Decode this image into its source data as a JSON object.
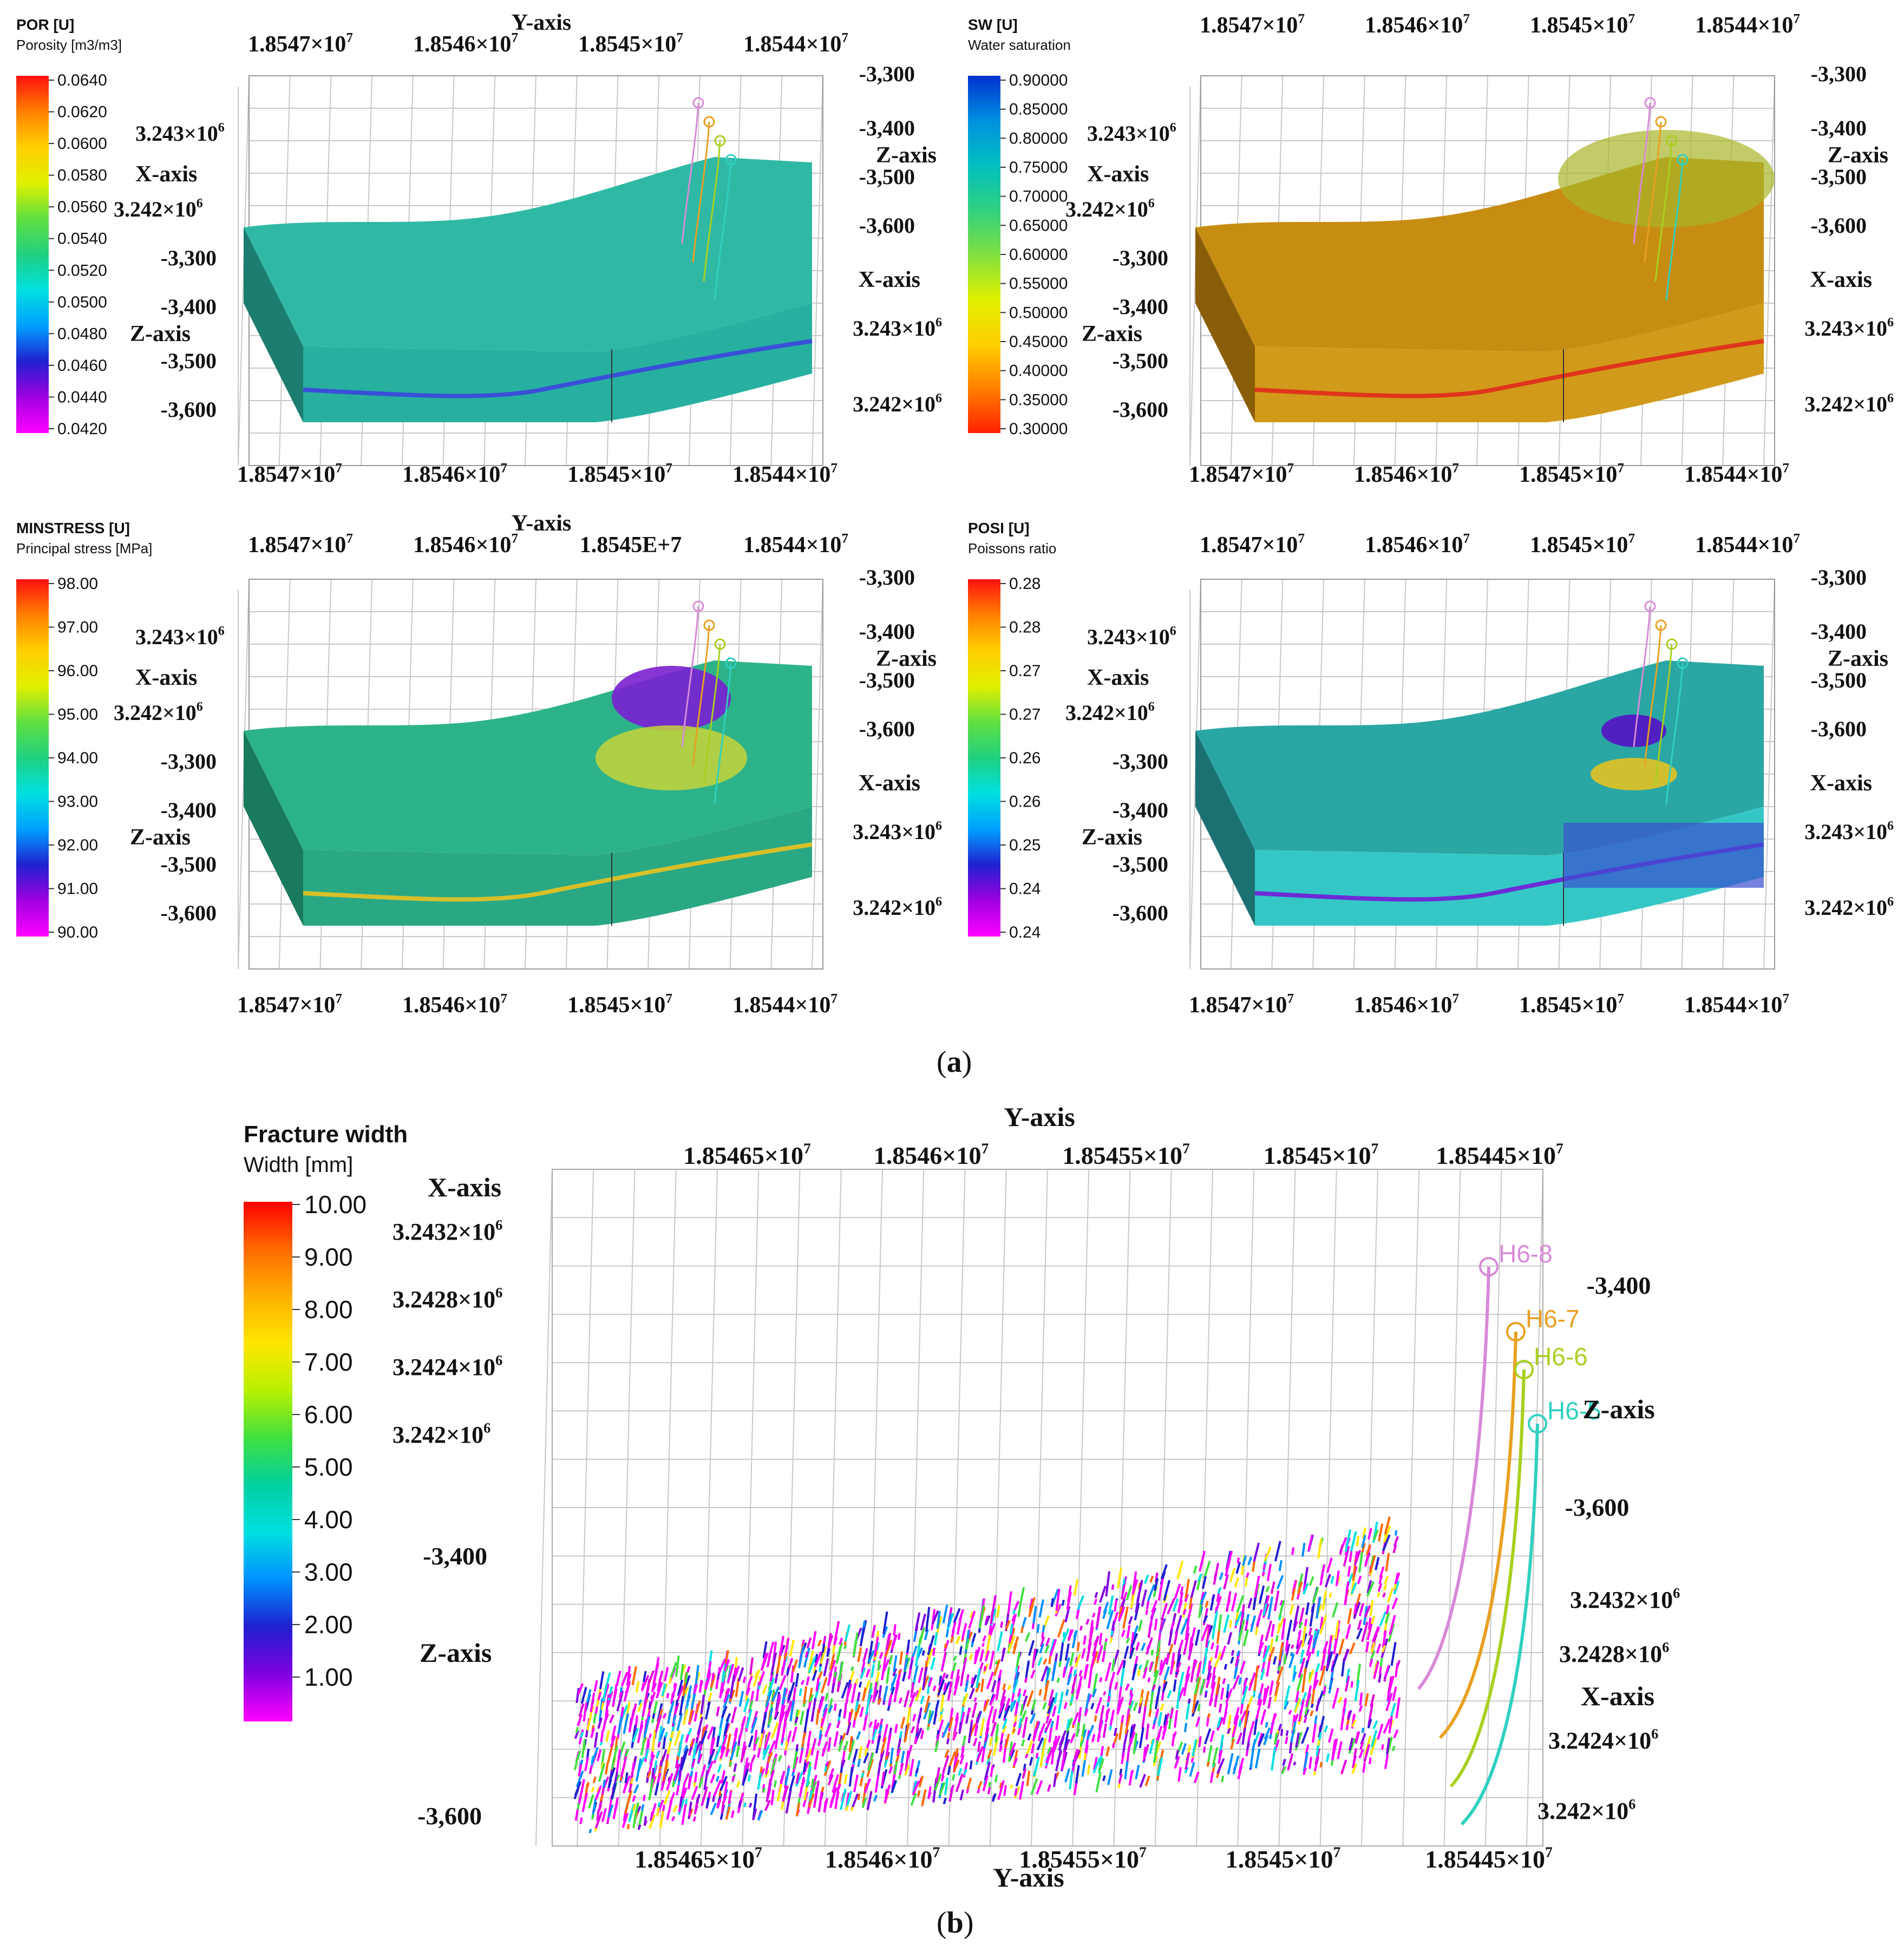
{
  "figure": {
    "caption_a_open": "(",
    "caption_a_letter": "a",
    "caption_a_close": ")",
    "caption_b_open": "(",
    "caption_b_letter": "b",
    "caption_b_close": ")"
  },
  "panels": [
    {
      "id": "por",
      "legend_title": "POR [U]",
      "legend_subtitle": "Porosity [m3/m3]",
      "legend_ticks": [
        "0.0640",
        "0.0620",
        "0.0600",
        "0.0580",
        "0.0560",
        "0.0540",
        "0.0520",
        "0.0500",
        "0.0480",
        "0.0460",
        "0.0440",
        "0.0420"
      ],
      "y_axis_title": "Y-axis",
      "y_ticks_top": [
        "1.8547×10",
        "1.8546×10",
        "1.8545×10",
        "1.8544×10"
      ],
      "y_ticks_bottom": [
        "1.8547×10",
        "1.8546×10",
        "1.8545×10",
        "1.8544×10"
      ],
      "y_exp": "7",
      "z_ticks_right": [
        "-3,300",
        "-3,400",
        "-3,500",
        "-3,600"
      ],
      "z_title_right": "Z-axis",
      "x_title_left": "X-axis",
      "x_ticks_left": [
        "3.243×10",
        "3.242×10"
      ],
      "x_exp": "6",
      "z_ticks_left": [
        "-3,300",
        "-3,400",
        "-3,500",
        "-3,600"
      ],
      "z_title_left": "Z-axis",
      "x_title_right": "X-axis",
      "x_ticks_right": [
        "3.243×10",
        "3.242×10"
      ],
      "wells": [],
      "colors": {
        "top": "#2fb9a4",
        "side": "#1b7c70",
        "front": "#27b0a0",
        "band": "#3a4fd8"
      }
    },
    {
      "id": "sw",
      "legend_title": "SW [U]",
      "legend_subtitle": "Water saturation",
      "legend_ticks": [
        "0.90000",
        "0.85000",
        "0.80000",
        "0.75000",
        "0.70000",
        "0.65000",
        "0.60000",
        "0.55000",
        "0.50000",
        "0.45000",
        "0.40000",
        "0.35000",
        "0.30000"
      ],
      "y_axis_title": "",
      "y_ticks_top": [
        "1.8547×10",
        "1.8546×10",
        "1.8545×10",
        "1.8544×10"
      ],
      "y_ticks_bottom": [
        "1.8547×10",
        "1.8546×10",
        "1.8545×10",
        "1.8544×10"
      ],
      "y_exp": "7",
      "z_ticks_right": [
        "-3,300",
        "-3,400",
        "-3,500",
        "-3,600"
      ],
      "z_title_right": "Z-axis",
      "x_title_left": "X-axis",
      "x_ticks_left": [
        "3.243×10",
        "3.242×10"
      ],
      "x_exp": "6",
      "z_ticks_left": [
        "-3,300",
        "-3,400",
        "-3,500",
        "-3,600"
      ],
      "z_title_left": "Z-axis",
      "x_title_right": "X-axis",
      "x_ticks_right": [
        "3.243×10",
        "3.242×10"
      ],
      "wells": [],
      "colors": {
        "top": "#c78d12",
        "side": "#8a5e08",
        "front": "#d19a1a",
        "band": "#e0341b"
      }
    },
    {
      "id": "minstress",
      "legend_title": "MINSTRESS [U]",
      "legend_subtitle": "Principal stress [MPa]",
      "legend_ticks": [
        "98.00",
        "97.00",
        "96.00",
        "95.00",
        "94.00",
        "93.00",
        "92.00",
        "91.00",
        "90.00"
      ],
      "y_axis_title": "Y-axis",
      "y_ticks_top": [
        "1.8547×10",
        "1.8546×10",
        "1.8545E+7",
        "1.8544×10"
      ],
      "y_ticks_bottom": [
        "1.8547×10",
        "1.8546×10",
        "1.8545×10",
        "1.8544×10"
      ],
      "y_exp": "7",
      "z_ticks_right": [
        "-3,300",
        "-3,400",
        "-3,500",
        "-3,600"
      ],
      "z_title_right": "Z-axis",
      "x_title_left": "X-axis",
      "x_ticks_left": [
        "3.243×10",
        "3.242×10"
      ],
      "x_exp": "6",
      "z_ticks_left": [
        "-3,300",
        "-3,400",
        "-3,500",
        "-3,600"
      ],
      "z_title_left": "Z-axis",
      "x_title_right": "X-axis",
      "x_ticks_right": [
        "3.243×10",
        "3.242×10"
      ],
      "wells": [],
      "colors": {
        "top": "#2db38a",
        "side": "#1a7a5d",
        "front": "#2aa884",
        "band": "#d6c02a"
      }
    },
    {
      "id": "posi",
      "legend_title": "POSI [U]",
      "legend_subtitle": "Poissons ratio",
      "legend_ticks": [
        "0.28",
        "0.28",
        "0.27",
        "0.27",
        "0.26",
        "0.26",
        "0.25",
        "0.24",
        "0.24"
      ],
      "y_axis_title": "",
      "y_ticks_top": [
        "1.8547×10",
        "1.8546×10",
        "1.8545×10",
        "1.8544×10"
      ],
      "y_ticks_bottom": [
        "1.8547×10",
        "1.8546×10",
        "1.8545×10",
        "1.8544×10"
      ],
      "y_exp": "7",
      "z_ticks_right": [
        "-3,300",
        "-3,400",
        "-3,500",
        "-3,600"
      ],
      "z_title_right": "Z-axis",
      "x_title_left": "X-axis",
      "x_ticks_left": [
        "3.243×10",
        "3.242×10"
      ],
      "x_exp": "6",
      "z_ticks_left": [
        "-3,300",
        "-3,400",
        "-3,500",
        "-3,600"
      ],
      "z_title_left": "Z-axis",
      "x_title_right": "X-axis",
      "x_ticks_right": [
        "3.243×10",
        "3.242×10"
      ],
      "wells": [],
      "colors": {
        "top": "#2aa6a4",
        "side": "#1a7170",
        "front": "#35c7c6",
        "band": "#6d2bd6"
      }
    }
  ],
  "fracture": {
    "legend_title": "Fracture width",
    "legend_subtitle": "Width [mm]",
    "legend_ticks": [
      "10.00",
      "9.00",
      "8.00",
      "7.00",
      "6.00",
      "5.00",
      "4.00",
      "3.00",
      "2.00",
      "1.00"
    ],
    "y_axis_title": "Y-axis",
    "y_ticks": [
      "1.85465×10",
      "1.8546×10",
      "1.85455×10",
      "1.8545×10",
      "1.85445×10"
    ],
    "y_exp": "7",
    "x_title_left": "X-axis",
    "x_ticks_left": [
      "3.2432×10",
      "3.2428×10",
      "3.2424×10",
      "3.242×10"
    ],
    "x_exp": "6",
    "z_ticks_left": [
      "-3,400",
      "-3,600"
    ],
    "z_title_left": "Z-axis",
    "z_ticks_right": [
      "-3,400",
      "-3,600"
    ],
    "z_title_right": "Z-axis",
    "x_title_right": "X-axis",
    "x_ticks_right": [
      "3.2432×10",
      "3.2428×10",
      "3.2424×10",
      "3.242×10"
    ],
    "wells": [
      "H6-8",
      "H6-7",
      "H6-6",
      "H6-5"
    ],
    "well_colors": [
      "#d88ad8",
      "#e8a020",
      "#a8d020",
      "#30d0c0"
    ]
  }
}
